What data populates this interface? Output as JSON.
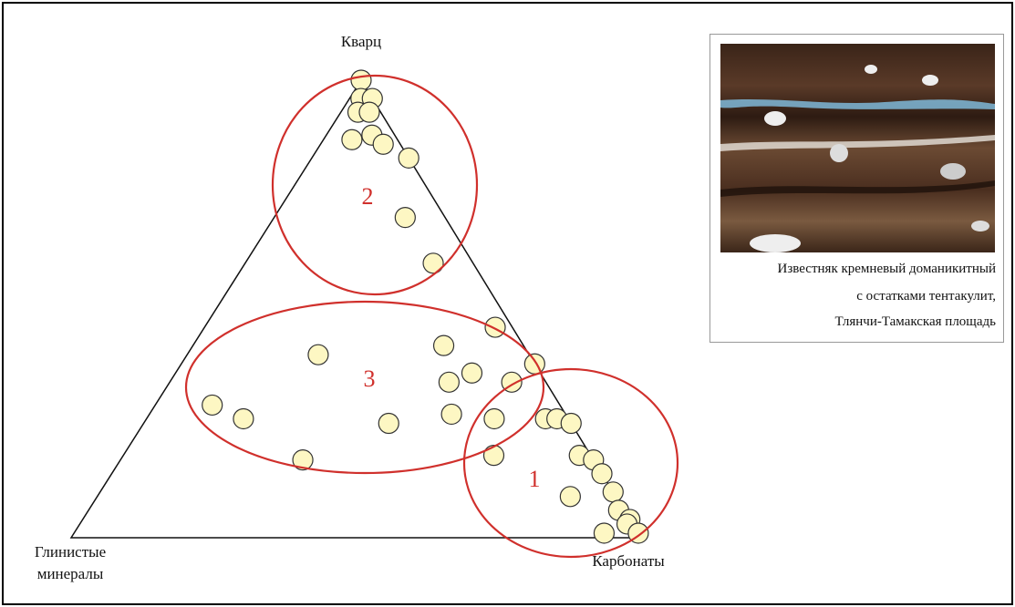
{
  "chart_data": {
    "type": "ternary",
    "vertices": {
      "top": "Кварц",
      "left": "Глинистые минералы",
      "right": "Карбонаты"
    },
    "quartz": [
      100,
      96,
      96,
      93,
      93,
      87,
      88,
      86,
      83,
      70,
      60,
      46,
      42,
      40,
      38,
      34,
      36,
      34,
      27,
      25,
      29,
      26,
      17,
      26,
      26,
      26,
      25,
      18,
      18,
      17,
      14,
      10,
      9,
      6,
      4,
      3,
      1,
      1
    ],
    "carbonates": [
      0,
      2,
      4,
      3,
      5,
      5,
      8,
      11,
      17,
      23,
      33,
      51,
      44,
      23,
      62,
      60,
      52,
      49,
      53,
      43,
      10,
      17,
      32,
      61,
      70,
      72,
      75,
      65,
      80,
      83,
      86,
      90,
      83,
      93,
      96,
      96,
      93,
      99
    ],
    "clay": [
      0,
      2,
      0,
      4,
      2,
      8,
      4,
      3,
      0,
      7,
      7,
      3,
      14,
      37,
      0,
      6,
      12,
      17,
      20,
      32,
      61,
      57,
      51,
      13,
      4,
      2,
      0,
      17,
      2,
      0,
      0,
      0,
      8,
      1,
      0,
      1,
      6,
      0
    ],
    "color": "#fdf7c3",
    "annotations": [
      "2",
      "3",
      "1"
    ]
  },
  "inset": {
    "caption": [
      "Известняк кремневый доманикитный",
      "с остатками тентакулит,",
      "Тлянчи-Тамакская площадь"
    ]
  }
}
